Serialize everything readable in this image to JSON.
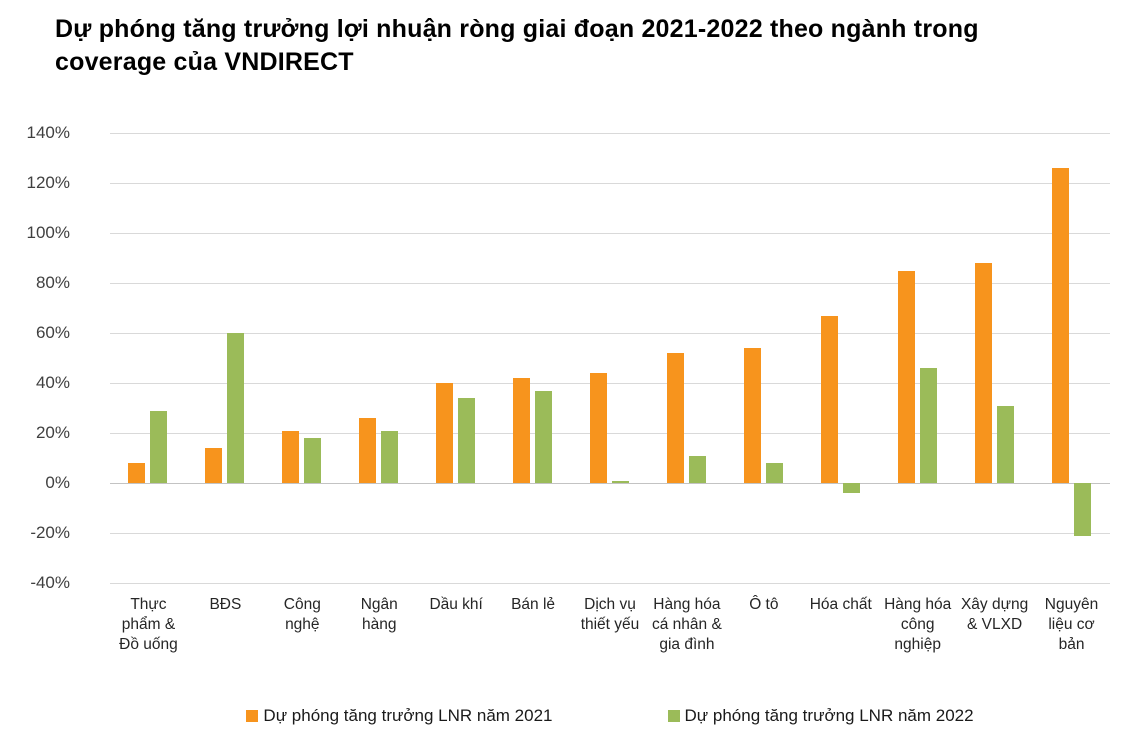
{
  "title": "Dự phóng tăng trưởng lợi nhuận ròng giai đoạn 2021-2022 theo ngành trong coverage của VNDIRECT",
  "colors": {
    "series_2021": "#f7941d",
    "series_2022": "#9bbb59",
    "gridline": "#d9d9d9",
    "axis_line": "#c3c3c3",
    "axis_text": "#404040",
    "title_text": "#000000",
    "background": "#ffffff"
  },
  "chart_data": {
    "type": "bar",
    "title": "Dự phóng tăng trưởng lợi nhuận ròng giai đoạn 2021-2022 theo ngành trong coverage của VNDIRECT",
    "categories": [
      "Thực phẩm & Đồ uống",
      "BĐS",
      "Công nghệ",
      "Ngân hàng",
      "Dầu khí",
      "Bán lẻ",
      "Dịch vụ thiết yếu",
      "Hàng hóa cá nhân & gia đình",
      "Ô tô",
      "Hóa chất",
      "Hàng hóa công nghiệp",
      "Xây dựng & VLXD",
      "Nguyên liệu cơ bản"
    ],
    "series": [
      {
        "name": "Dự phóng tăng trưởng LNR năm 2021",
        "color": "#f7941d",
        "values": [
          8,
          14,
          21,
          26,
          40,
          42,
          44,
          52,
          54,
          67,
          85,
          88,
          126
        ]
      },
      {
        "name": "Dự phóng tăng trưởng LNR năm 2022",
        "color": "#9bbb59",
        "values": [
          29,
          60,
          18,
          21,
          34,
          37,
          1,
          11,
          8,
          -4,
          46,
          31,
          -21
        ]
      }
    ],
    "xlabel": "",
    "ylabel": "",
    "ylim": [
      -40,
      140
    ],
    "ytick_step": 20,
    "ytick_labels": [
      "140%",
      "120%",
      "100%",
      "80%",
      "60%",
      "40%",
      "20%",
      "0%",
      "-20%",
      "-40%"
    ],
    "grid": true,
    "legend_position": "bottom"
  }
}
